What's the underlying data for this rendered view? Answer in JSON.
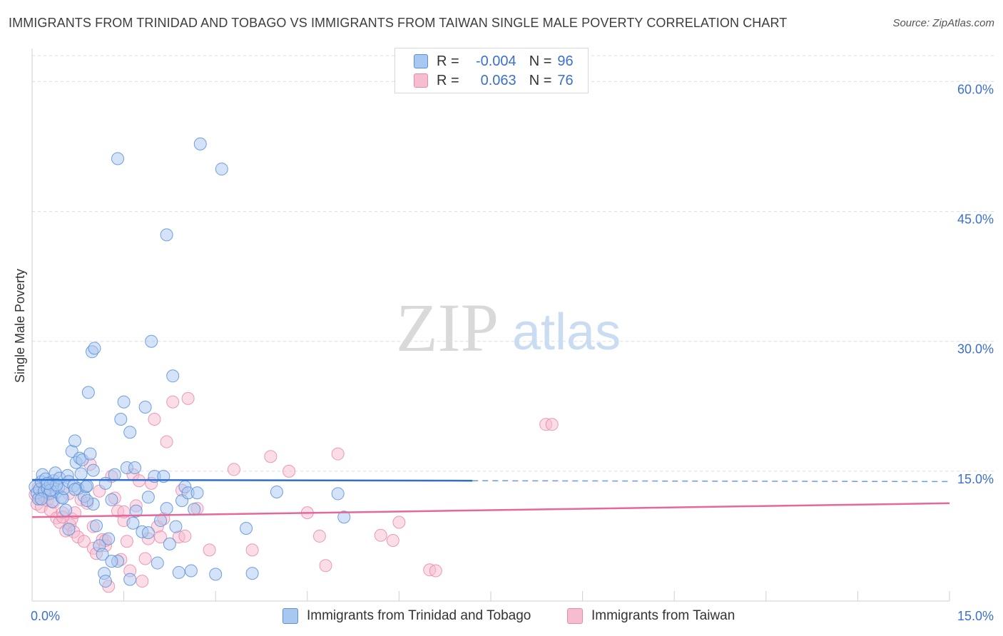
{
  "title": "IMMIGRANTS FROM TRINIDAD AND TOBAGO VS IMMIGRANTS FROM TAIWAN SINGLE MALE POVERTY CORRELATION CHART",
  "source": "Source: ZipAtlas.com",
  "watermark": {
    "zip": "ZIP",
    "atlas": "atlas"
  },
  "legend": {
    "r_label": "R =",
    "n_label": "N =",
    "series": [
      {
        "name": "Immigrants from Trinidad and Tobago",
        "r": "-0.004",
        "n": "96"
      },
      {
        "name": "Immigrants from Taiwan",
        "r": "0.063",
        "n": "76"
      }
    ]
  },
  "colors": {
    "blue_fill": "#a9c8f0",
    "blue_stroke": "#5b8fd6",
    "blue_line": "#2f6fcf",
    "pink_fill": "#f6bcd0",
    "pink_stroke": "#e88aab",
    "pink_line": "#e5689a",
    "axis_label": "#3b6fd0",
    "grid": "#dcdcdc"
  },
  "chart_data": {
    "type": "scatter",
    "title": "IMMIGRANTS FROM TRINIDAD AND TOBAGO VS IMMIGRANTS FROM TAIWAN SINGLE MALE POVERTY CORRELATION CHART",
    "xlabel": "",
    "ylabel": "Single Male Poverty",
    "xlim": [
      0,
      15
    ],
    "ylim": [
      0,
      63
    ],
    "x_tick_labels": [
      "0.0%",
      "15.0%"
    ],
    "y_ticks": [
      15,
      30,
      45,
      60
    ],
    "y_tick_labels": [
      "15.0%",
      "30.0%",
      "45.0%",
      "60.0%"
    ],
    "series": [
      {
        "name": "Immigrants from Trinidad and Tobago",
        "color": "blue",
        "trend": {
          "x0": 0,
          "y0": 14.0,
          "x1": 7.2,
          "y1": 13.9,
          "dashed_to_x": 15,
          "dashed_y": 13.8
        },
        "points": [
          [
            0.05,
            13.2
          ],
          [
            0.08,
            12.5
          ],
          [
            0.1,
            11.8
          ],
          [
            0.12,
            12.9
          ],
          [
            0.15,
            13.8
          ],
          [
            0.17,
            14.6
          ],
          [
            0.2,
            12.7
          ],
          [
            0.22,
            14.1
          ],
          [
            0.25,
            13.0
          ],
          [
            0.28,
            12.4
          ],
          [
            0.3,
            13.5
          ],
          [
            0.33,
            11.5
          ],
          [
            0.35,
            13.9
          ],
          [
            0.38,
            14.8
          ],
          [
            0.4,
            12.6
          ],
          [
            0.43,
            13.1
          ],
          [
            0.45,
            14.2
          ],
          [
            0.48,
            12.0
          ],
          [
            0.5,
            11.9
          ],
          [
            0.52,
            13.0
          ],
          [
            0.55,
            10.5
          ],
          [
            0.58,
            14.5
          ],
          [
            0.6,
            13.8
          ],
          [
            0.65,
            17.3
          ],
          [
            0.68,
            13.3
          ],
          [
            0.7,
            18.5
          ],
          [
            0.72,
            16.0
          ],
          [
            0.75,
            13.0
          ],
          [
            0.78,
            16.5
          ],
          [
            0.8,
            14.7
          ],
          [
            0.82,
            16.3
          ],
          [
            0.85,
            12.1
          ],
          [
            0.88,
            13.2
          ],
          [
            0.9,
            13.3
          ],
          [
            0.92,
            24.1
          ],
          [
            0.95,
            17.0
          ],
          [
            0.98,
            28.8
          ],
          [
            1.0,
            15.1
          ],
          [
            1.02,
            29.2
          ],
          [
            1.05,
            8.7
          ],
          [
            1.1,
            6.4
          ],
          [
            1.15,
            5.4
          ],
          [
            1.18,
            3.2
          ],
          [
            1.2,
            13.6
          ],
          [
            1.25,
            7.2
          ],
          [
            1.3,
            11.7
          ],
          [
            1.35,
            14.6
          ],
          [
            1.4,
            4.6
          ],
          [
            1.45,
            21.0
          ],
          [
            1.5,
            23.0
          ],
          [
            1.55,
            15.4
          ],
          [
            1.6,
            19.5
          ],
          [
            1.65,
            9.0
          ],
          [
            1.68,
            15.4
          ],
          [
            1.7,
            10.4
          ],
          [
            1.8,
            8.0
          ],
          [
            1.85,
            22.4
          ],
          [
            1.9,
            12.0
          ],
          [
            1.95,
            30.0
          ],
          [
            2.0,
            14.4
          ],
          [
            2.05,
            4.4
          ],
          [
            2.1,
            9.3
          ],
          [
            2.15,
            14.4
          ],
          [
            2.2,
            10.7
          ],
          [
            2.25,
            6.6
          ],
          [
            2.3,
            26.0
          ],
          [
            2.35,
            8.6
          ],
          [
            2.4,
            3.3
          ],
          [
            2.45,
            11.6
          ],
          [
            2.5,
            13.2
          ],
          [
            2.55,
            12.5
          ],
          [
            2.6,
            3.5
          ],
          [
            2.65,
            10.6
          ],
          [
            2.7,
            12.5
          ],
          [
            2.75,
            52.8
          ],
          [
            3.1,
            49.9
          ],
          [
            1.4,
            51.1
          ],
          [
            2.2,
            42.3
          ],
          [
            3.0,
            3.1
          ],
          [
            3.5,
            8.4
          ],
          [
            3.6,
            3.2
          ],
          [
            4.0,
            12.6
          ],
          [
            5.0,
            12.4
          ],
          [
            5.1,
            9.7
          ],
          [
            1.0,
            11.2
          ],
          [
            1.2,
            2.3
          ],
          [
            0.6,
            8.3
          ],
          [
            0.9,
            11.6
          ],
          [
            0.3,
            12.8
          ],
          [
            0.15,
            11.8
          ],
          [
            0.4,
            13.4
          ],
          [
            0.7,
            12.9
          ],
          [
            1.3,
            4.6
          ],
          [
            1.6,
            2.5
          ],
          [
            1.9,
            7.9
          ],
          [
            0.25,
            13.6
          ]
        ]
      },
      {
        "name": "Immigrants from Taiwan",
        "color": "pink",
        "trend": {
          "x0": 0,
          "y0": 9.7,
          "x1": 15,
          "y1": 11.3
        },
        "points": [
          [
            0.05,
            12.3
          ],
          [
            0.08,
            11.2
          ],
          [
            0.1,
            13.1
          ],
          [
            0.12,
            11.9
          ],
          [
            0.15,
            10.9
          ],
          [
            0.18,
            12.8
          ],
          [
            0.2,
            12.1
          ],
          [
            0.25,
            11.6
          ],
          [
            0.28,
            12.5
          ],
          [
            0.3,
            10.5
          ],
          [
            0.35,
            11.4
          ],
          [
            0.4,
            9.6
          ],
          [
            0.45,
            9.1
          ],
          [
            0.5,
            10.2
          ],
          [
            0.55,
            8.1
          ],
          [
            0.6,
            12.4
          ],
          [
            0.62,
            8.8
          ],
          [
            0.65,
            9.5
          ],
          [
            0.68,
            8.0
          ],
          [
            0.7,
            10.2
          ],
          [
            0.75,
            7.4
          ],
          [
            0.8,
            11.7
          ],
          [
            0.85,
            6.9
          ],
          [
            0.9,
            11.3
          ],
          [
            0.95,
            15.8
          ],
          [
            1.0,
            6.1
          ],
          [
            1.05,
            5.5
          ],
          [
            1.1,
            12.7
          ],
          [
            1.15,
            7.1
          ],
          [
            1.2,
            6.4
          ],
          [
            1.25,
            1.7
          ],
          [
            1.3,
            14.4
          ],
          [
            1.35,
            11.9
          ],
          [
            1.4,
            10.4
          ],
          [
            1.45,
            4.8
          ],
          [
            1.5,
            9.3
          ],
          [
            1.55,
            6.9
          ],
          [
            1.6,
            3.5
          ],
          [
            1.65,
            14.6
          ],
          [
            1.7,
            11.0
          ],
          [
            1.75,
            13.9
          ],
          [
            1.8,
            2.3
          ],
          [
            1.85,
            4.9
          ],
          [
            1.9,
            7.2
          ],
          [
            1.95,
            13.6
          ],
          [
            2.0,
            21.0
          ],
          [
            2.05,
            8.6
          ],
          [
            2.1,
            7.4
          ],
          [
            2.15,
            9.5
          ],
          [
            2.2,
            18.4
          ],
          [
            2.3,
            23.0
          ],
          [
            2.4,
            7.4
          ],
          [
            2.45,
            12.8
          ],
          [
            2.55,
            23.4
          ],
          [
            2.7,
            10.7
          ],
          [
            2.9,
            5.9
          ],
          [
            3.3,
            15.2
          ],
          [
            3.6,
            5.9
          ],
          [
            3.9,
            16.7
          ],
          [
            4.2,
            15.0
          ],
          [
            4.5,
            10.2
          ],
          [
            4.7,
            7.5
          ],
          [
            4.8,
            4.1
          ],
          [
            5.0,
            17.0
          ],
          [
            5.7,
            7.6
          ],
          [
            5.9,
            7.0
          ],
          [
            6.0,
            9.1
          ],
          [
            6.5,
            3.6
          ],
          [
            6.6,
            3.5
          ],
          [
            8.4,
            20.4
          ],
          [
            8.5,
            20.4
          ],
          [
            1.0,
            8.6
          ],
          [
            1.5,
            10.3
          ],
          [
            2.5,
            7.5
          ],
          [
            1.2,
            7.0
          ],
          [
            0.5,
            9.7
          ]
        ]
      }
    ]
  }
}
